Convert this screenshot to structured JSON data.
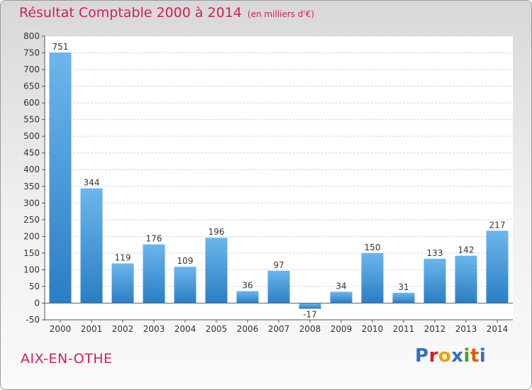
{
  "header": {
    "title": "Résultat Comptable 2000 à 2014",
    "unit_note": "(en milliers d'€)"
  },
  "footer": {
    "place": "AIX-EN-OTHE",
    "logo_text": "Proxiti",
    "logo_colors": [
      "#2f6fc8",
      "#d62020",
      "#f0a000",
      "#2f6fc8",
      "#4aa02c",
      "#e05a00",
      "#2f6fc8"
    ]
  },
  "colors": {
    "accent": "#d2224e",
    "bar_top": "#6cb6ec",
    "bar_bottom": "#2a7ec4"
  },
  "chart_data": {
    "type": "bar",
    "categories": [
      "2000",
      "2001",
      "2002",
      "2003",
      "2004",
      "2005",
      "2006",
      "2007",
      "2008",
      "2009",
      "2010",
      "2011",
      "2012",
      "2013",
      "2014"
    ],
    "values": [
      751,
      344,
      119,
      176,
      109,
      196,
      36,
      97,
      -17,
      34,
      150,
      31,
      133,
      142,
      217
    ],
    "data_labels": [
      "751",
      "344",
      "119",
      "176",
      "109",
      "196",
      "36",
      "97",
      "-17",
      "34",
      "150",
      "31",
      "133",
      "142",
      "217"
    ],
    "ylim": [
      -50,
      800
    ],
    "yticks": [
      -50,
      0,
      50,
      100,
      150,
      200,
      250,
      300,
      350,
      400,
      450,
      500,
      550,
      600,
      650,
      700,
      750,
      800
    ],
    "ytick_labels": [
      "-50",
      "0",
      "50",
      "100",
      "150",
      "200",
      "250",
      "300",
      "350",
      "400",
      "450",
      "500",
      "550",
      "600",
      "650",
      "700",
      "750",
      "800"
    ],
    "grid": true
  }
}
